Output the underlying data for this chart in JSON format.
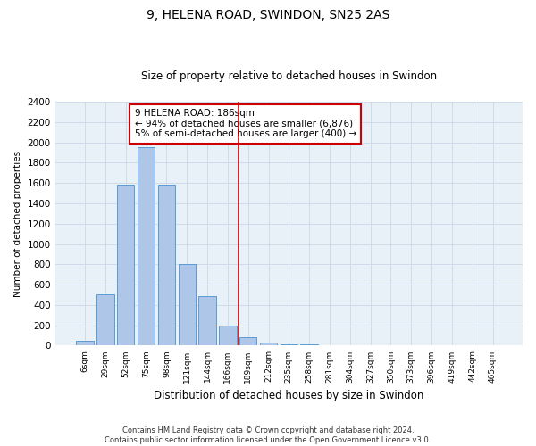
{
  "title": "9, HELENA ROAD, SWINDON, SN25 2AS",
  "subtitle": "Size of property relative to detached houses in Swindon",
  "xlabel": "Distribution of detached houses by size in Swindon",
  "ylabel": "Number of detached properties",
  "footer_line1": "Contains HM Land Registry data © Crown copyright and database right 2024.",
  "footer_line2": "Contains public sector information licensed under the Open Government Licence v3.0.",
  "categories": [
    "6sqm",
    "29sqm",
    "52sqm",
    "75sqm",
    "98sqm",
    "121sqm",
    "144sqm",
    "166sqm",
    "189sqm",
    "212sqm",
    "235sqm",
    "258sqm",
    "281sqm",
    "304sqm",
    "327sqm",
    "350sqm",
    "373sqm",
    "396sqm",
    "419sqm",
    "442sqm",
    "465sqm"
  ],
  "values": [
    50,
    500,
    1580,
    1950,
    1580,
    800,
    490,
    200,
    85,
    30,
    15,
    10,
    5,
    0,
    0,
    0,
    0,
    0,
    0,
    0,
    0
  ],
  "bar_color": "#aec6e8",
  "bar_edge_color": "#5b9bd5",
  "vline_index": 8,
  "vline_color": "#cc0000",
  "annotation_text": "9 HELENA ROAD: 186sqm\n← 94% of detached houses are smaller (6,876)\n5% of semi-detached houses are larger (400) →",
  "annotation_box_color": "#cc0000",
  "ylim": [
    0,
    2400
  ],
  "yticks": [
    0,
    200,
    400,
    600,
    800,
    1000,
    1200,
    1400,
    1600,
    1800,
    2000,
    2200,
    2400
  ],
  "grid_color": "#ccd8e8",
  "background_color": "#e8f0f8"
}
